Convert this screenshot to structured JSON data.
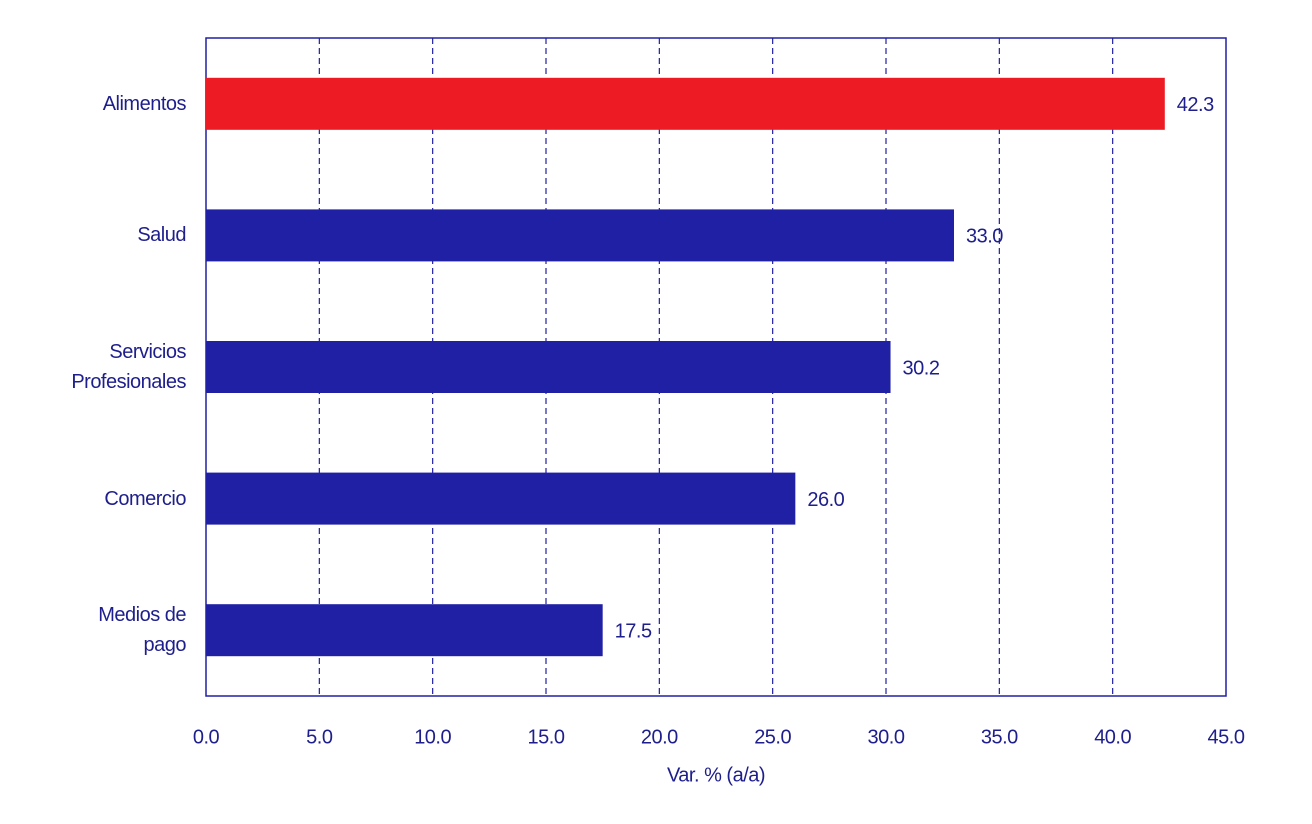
{
  "chart_data": {
    "type": "bar",
    "orientation": "horizontal",
    "x_label": "Var. % (a/a)",
    "categories": [
      "Alimentos",
      "Salud",
      "Servicios Profesionales",
      "Comercio",
      "Medios de pago"
    ],
    "values": [
      42.3,
      33.0,
      30.2,
      26.0,
      17.5
    ],
    "value_labels": [
      "42.3",
      "33.0",
      "30.2",
      "26.0",
      "17.5"
    ],
    "colors": [
      "#ed1c24",
      "#2020a4",
      "#2020a4",
      "#2020a4",
      "#2020a4"
    ],
    "xlim": [
      0,
      45
    ],
    "xticks": [
      {
        "value": 0,
        "label": "0.0"
      },
      {
        "value": 5,
        "label": "5.0"
      },
      {
        "value": 10,
        "label": "10.0"
      },
      {
        "value": 15,
        "label": "15.0"
      },
      {
        "value": 20,
        "label": "20.0"
      },
      {
        "value": 25,
        "label": "25.0"
      },
      {
        "value": 30,
        "label": "30.0"
      },
      {
        "value": 35,
        "label": "35.0"
      },
      {
        "value": 40,
        "label": "40.0"
      },
      {
        "value": 45,
        "label": "45.0"
      }
    ],
    "grid": true
  }
}
